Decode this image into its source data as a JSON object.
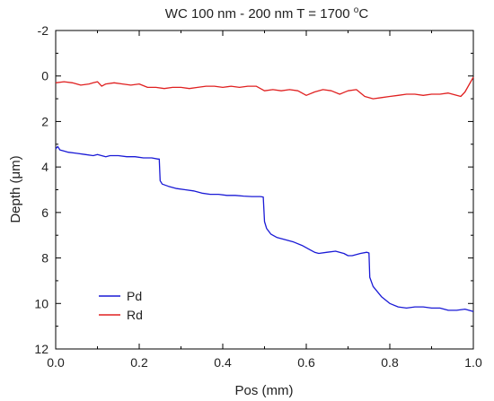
{
  "chart_data": {
    "type": "line",
    "title_main": "WC 100 nm - 200 nm T = 1700 ",
    "title_sup": "o",
    "title_unit": "C",
    "xlabel": "Pos (mm)",
    "ylabel": "Depth (μm)",
    "xlim": [
      0.0,
      1.0
    ],
    "ylim": [
      -2,
      12
    ],
    "y_inverted": true,
    "x_ticks": [
      "0.0",
      "0.2",
      "0.4",
      "0.6",
      "0.8",
      "1.0"
    ],
    "y_ticks": [
      "-2",
      "0",
      "2",
      "4",
      "6",
      "8",
      "10",
      "12"
    ],
    "grid": false,
    "legend_position": "bottom-left",
    "series": [
      {
        "name": "Pd",
        "color": "#1a1ad6",
        "x": [
          0.0,
          0.005,
          0.01,
          0.02,
          0.03,
          0.05,
          0.07,
          0.09,
          0.1,
          0.12,
          0.13,
          0.15,
          0.17,
          0.19,
          0.21,
          0.23,
          0.245,
          0.248,
          0.25,
          0.255,
          0.27,
          0.29,
          0.31,
          0.33,
          0.35,
          0.37,
          0.39,
          0.41,
          0.43,
          0.45,
          0.47,
          0.49,
          0.497,
          0.5,
          0.505,
          0.515,
          0.53,
          0.55,
          0.57,
          0.59,
          0.61,
          0.62,
          0.63,
          0.65,
          0.67,
          0.69,
          0.7,
          0.71,
          0.73,
          0.745,
          0.75,
          0.752,
          0.76,
          0.78,
          0.8,
          0.82,
          0.84,
          0.86,
          0.88,
          0.9,
          0.92,
          0.94,
          0.96,
          0.98,
          1.0
        ],
        "y": [
          3.2,
          3.1,
          3.25,
          3.3,
          3.35,
          3.4,
          3.45,
          3.5,
          3.45,
          3.55,
          3.5,
          3.5,
          3.55,
          3.55,
          3.6,
          3.6,
          3.65,
          3.65,
          4.6,
          4.75,
          4.85,
          4.95,
          5.0,
          5.05,
          5.15,
          5.2,
          5.2,
          5.25,
          5.25,
          5.28,
          5.3,
          5.3,
          5.32,
          6.4,
          6.7,
          6.95,
          7.1,
          7.2,
          7.3,
          7.45,
          7.65,
          7.75,
          7.8,
          7.75,
          7.7,
          7.8,
          7.9,
          7.9,
          7.8,
          7.75,
          7.78,
          8.85,
          9.25,
          9.7,
          10.0,
          10.15,
          10.2,
          10.15,
          10.15,
          10.2,
          10.2,
          10.3,
          10.3,
          10.25,
          10.35
        ]
      },
      {
        "name": "Rd",
        "color": "#e02020",
        "x": [
          0.0,
          0.02,
          0.04,
          0.06,
          0.08,
          0.09,
          0.1,
          0.11,
          0.12,
          0.14,
          0.16,
          0.18,
          0.2,
          0.22,
          0.24,
          0.26,
          0.28,
          0.3,
          0.32,
          0.34,
          0.36,
          0.38,
          0.4,
          0.42,
          0.44,
          0.46,
          0.48,
          0.5,
          0.52,
          0.54,
          0.56,
          0.58,
          0.6,
          0.62,
          0.64,
          0.66,
          0.68,
          0.7,
          0.72,
          0.74,
          0.76,
          0.78,
          0.8,
          0.82,
          0.84,
          0.86,
          0.88,
          0.9,
          0.92,
          0.94,
          0.96,
          0.97,
          0.98,
          1.0
        ],
        "y": [
          0.3,
          0.25,
          0.3,
          0.4,
          0.35,
          0.3,
          0.25,
          0.45,
          0.35,
          0.3,
          0.35,
          0.4,
          0.35,
          0.5,
          0.5,
          0.55,
          0.5,
          0.5,
          0.55,
          0.5,
          0.45,
          0.45,
          0.5,
          0.45,
          0.5,
          0.45,
          0.45,
          0.65,
          0.6,
          0.65,
          0.6,
          0.65,
          0.85,
          0.7,
          0.6,
          0.65,
          0.8,
          0.65,
          0.6,
          0.9,
          1.0,
          0.95,
          0.9,
          0.85,
          0.8,
          0.8,
          0.85,
          0.8,
          0.8,
          0.75,
          0.85,
          0.9,
          0.7,
          0.05
        ]
      }
    ]
  }
}
